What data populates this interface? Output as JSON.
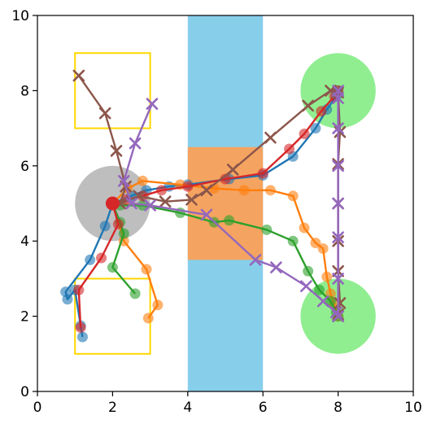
{
  "chart_data": {
    "type": "line",
    "title": "",
    "xlabel": "",
    "ylabel": "",
    "xlim": [
      0,
      10
    ],
    "ylim": [
      0,
      10
    ],
    "xticks": [
      "0",
      "2",
      "4",
      "6",
      "8",
      "10"
    ],
    "yticks": [
      "0",
      "2",
      "4",
      "6",
      "8",
      "10"
    ],
    "grid": false,
    "legend": "none",
    "regions": [
      {
        "kind": "rect",
        "x0": 4,
        "x1": 6,
        "y0": 0,
        "y1": 10,
        "color": "#87ceeb",
        "fill": true
      },
      {
        "kind": "rect",
        "x0": 4,
        "x1": 6,
        "y0": 3.5,
        "y1": 6.5,
        "color": "#f4a460",
        "fill": true
      },
      {
        "kind": "circle",
        "cx": 2,
        "cy": 5,
        "r": 1,
        "color": "#bebebe",
        "fill": true
      },
      {
        "kind": "circle",
        "cx": 8,
        "cy": 8,
        "r": 1,
        "color": "#90ee90",
        "fill": true
      },
      {
        "kind": "circle",
        "cx": 8,
        "cy": 2,
        "r": 1,
        "color": "#90ee90",
        "fill": true
      },
      {
        "kind": "rect",
        "x0": 1,
        "x1": 3,
        "y0": 7,
        "y1": 9,
        "color": "#ffd700",
        "fill": false
      },
      {
        "kind": "rect",
        "x0": 1,
        "x1": 3,
        "y0": 1,
        "y1": 3,
        "color": "#ffd700",
        "fill": false
      }
    ],
    "series": [
      {
        "color": "#1f77b4",
        "marker": "o",
        "points": [
          [
            1.2,
            1.45
          ],
          [
            1.15,
            1.75
          ],
          [
            1.0,
            2.7
          ],
          [
            0.8,
            2.45
          ],
          [
            0.75,
            2.65
          ],
          [
            1.4,
            3.5
          ],
          [
            1.8,
            4.4
          ],
          [
            2.0,
            5.0
          ],
          [
            2.5,
            5.2
          ],
          [
            2.9,
            5.35
          ],
          [
            3.5,
            5.45
          ],
          [
            4.0,
            5.5
          ],
          [
            5.1,
            5.65
          ],
          [
            6.0,
            5.75
          ],
          [
            6.8,
            6.25
          ],
          [
            7.4,
            7.0
          ],
          [
            7.7,
            7.5
          ],
          [
            7.95,
            7.85
          ],
          [
            8.0,
            8.0
          ]
        ]
      },
      {
        "color": "#ff7f0e",
        "marker": "o",
        "points": [
          [
            2.95,
            1.95
          ],
          [
            3.2,
            2.3
          ],
          [
            2.9,
            3.25
          ],
          [
            2.3,
            4.0
          ],
          [
            2.0,
            5.0
          ],
          [
            2.4,
            5.4
          ],
          [
            2.8,
            5.6
          ],
          [
            3.8,
            5.5
          ],
          [
            4.7,
            5.4
          ],
          [
            5.5,
            5.35
          ],
          [
            6.2,
            5.35
          ],
          [
            6.8,
            5.2
          ],
          [
            7.1,
            4.35
          ],
          [
            7.4,
            3.95
          ],
          [
            7.6,
            3.8
          ],
          [
            7.7,
            3.05
          ],
          [
            7.8,
            2.6
          ],
          [
            7.9,
            2.3
          ],
          [
            8.0,
            2.0
          ]
        ]
      },
      {
        "color": "#2ca02c",
        "marker": "o",
        "points": [
          [
            2.6,
            2.6
          ],
          [
            2.0,
            3.3
          ],
          [
            2.3,
            4.2
          ],
          [
            2.2,
            4.5
          ],
          [
            2.0,
            5.0
          ],
          [
            2.2,
            4.95
          ],
          [
            2.8,
            4.95
          ],
          [
            3.8,
            4.75
          ],
          [
            4.7,
            4.5
          ],
          [
            5.1,
            4.55
          ],
          [
            6.1,
            4.3
          ],
          [
            6.8,
            4.0
          ],
          [
            7.2,
            3.2
          ],
          [
            7.5,
            2.7
          ],
          [
            7.8,
            2.4
          ],
          [
            7.95,
            2.1
          ],
          [
            8.0,
            2.0
          ]
        ]
      },
      {
        "color": "#d62728",
        "marker": "o",
        "points": [
          [
            1.15,
            1.7
          ],
          [
            1.1,
            2.7
          ],
          [
            1.7,
            3.55
          ],
          [
            2.15,
            4.45
          ],
          [
            2.0,
            5.0
          ],
          [
            2.35,
            5.1
          ],
          [
            2.8,
            5.2
          ],
          [
            3.3,
            5.35
          ],
          [
            4.0,
            5.45
          ],
          [
            5.0,
            5.65
          ],
          [
            6.0,
            5.8
          ],
          [
            6.7,
            6.45
          ],
          [
            7.1,
            6.85
          ],
          [
            7.55,
            7.45
          ],
          [
            7.9,
            7.85
          ],
          [
            8.0,
            8.0
          ]
        ]
      },
      {
        "color": "#8c564b",
        "marker": "x",
        "points": [
          [
            1.1,
            8.4
          ],
          [
            1.8,
            7.4
          ],
          [
            2.1,
            6.4
          ],
          [
            2.35,
            5.45
          ],
          [
            2.2,
            5.0
          ],
          [
            2.7,
            5.2
          ],
          [
            3.4,
            5.05
          ],
          [
            4.1,
            5.1
          ],
          [
            4.5,
            5.35
          ],
          [
            5.2,
            5.9
          ],
          [
            6.2,
            6.75
          ],
          [
            7.2,
            7.6
          ],
          [
            7.8,
            8.0
          ],
          [
            8.0,
            7.95
          ],
          [
            8.05,
            6.9
          ],
          [
            8.0,
            6.05
          ],
          [
            8.0,
            5.0
          ],
          [
            8.0,
            4.0
          ],
          [
            8.0,
            3.2
          ],
          [
            8.05,
            2.35
          ],
          [
            8.0,
            2.05
          ],
          [
            8.0,
            2.0
          ]
        ]
      },
      {
        "color": "#9467bd",
        "marker": "x",
        "points": [
          [
            3.05,
            7.65
          ],
          [
            2.6,
            6.6
          ],
          [
            2.3,
            5.6
          ],
          [
            2.5,
            5.0
          ],
          [
            3.0,
            4.95
          ],
          [
            4.5,
            4.7
          ],
          [
            5.8,
            3.5
          ],
          [
            6.35,
            3.3
          ],
          [
            7.15,
            2.8
          ],
          [
            7.6,
            2.4
          ],
          [
            7.95,
            2.1
          ],
          [
            8.0,
            2.0
          ],
          [
            8.0,
            3.0
          ],
          [
            8.0,
            4.1
          ],
          [
            8.0,
            5.0
          ],
          [
            8.0,
            6.0
          ],
          [
            8.0,
            7.0
          ],
          [
            8.0,
            7.8
          ],
          [
            8.0,
            8.0
          ]
        ]
      }
    ],
    "start_marker": {
      "x": 2.0,
      "y": 5.0,
      "color": "#d62728"
    }
  }
}
